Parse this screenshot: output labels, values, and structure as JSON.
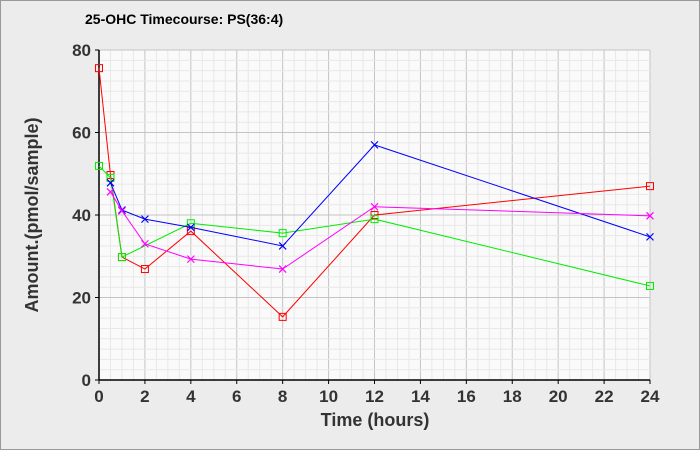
{
  "chart_data": {
    "type": "line",
    "title": "25-OHC Timecourse: PS(36:4)",
    "xlabel": "Time (hours)",
    "ylabel": "Amount.(pmol/sample)",
    "xlim": [
      0,
      24
    ],
    "ylim": [
      0,
      80
    ],
    "xticks": [
      0,
      2,
      4,
      6,
      8,
      10,
      12,
      14,
      16,
      18,
      20,
      22,
      24
    ],
    "yticks": [
      0,
      20,
      40,
      60,
      80
    ],
    "grid": true,
    "series": [
      {
        "color": "#ff0000",
        "marker": "square",
        "x": [
          0,
          0.5,
          1,
          2,
          4,
          8,
          12,
          24
        ],
        "y": [
          75.6,
          49.7,
          29.8,
          26.9,
          36.1,
          15.3,
          40,
          47
        ]
      },
      {
        "color": "#00ee00",
        "marker": "square",
        "x": [
          0,
          0.5,
          1,
          4,
          8,
          12,
          24
        ],
        "y": [
          51.9,
          49,
          29.8,
          38,
          35.6,
          39,
          22.8
        ]
      },
      {
        "color": "#0000ff",
        "marker": "x",
        "x": [
          0.5,
          1,
          2,
          4,
          8,
          12,
          24
        ],
        "y": [
          47.8,
          41.2,
          39,
          37,
          32.5,
          57,
          34.7
        ]
      },
      {
        "color": "#ff00ff",
        "marker": "x",
        "x": [
          0.5,
          1,
          2,
          4,
          8,
          12,
          24
        ],
        "y": [
          45.6,
          41,
          33,
          29.3,
          26.9,
          42,
          39.8
        ]
      }
    ]
  }
}
